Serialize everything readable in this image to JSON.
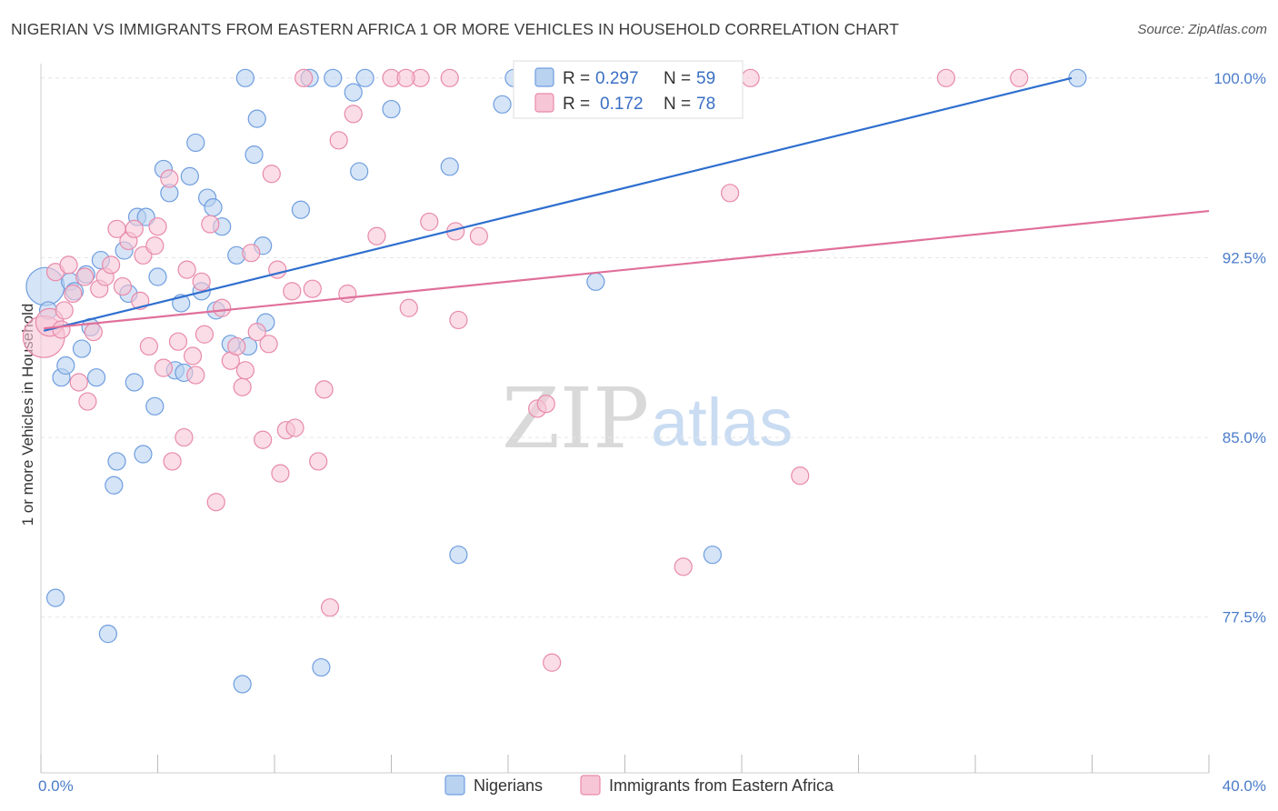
{
  "title": "NIGERIAN VS IMMIGRANTS FROM EASTERN AFRICA 1 OR MORE VEHICLES IN HOUSEHOLD CORRELATION CHART",
  "source": "Source: ZipAtlas.com",
  "watermark": {
    "zip": "ZIP",
    "atlas": "atlas"
  },
  "colors": {
    "nigerians_fill": "#b9d2f0",
    "nigerians_stroke": "#6f9ee0",
    "nigerians_line": "#2f6fcf",
    "eastafrica_fill": "#f7c6d6",
    "eastafrica_stroke": "#e88aab",
    "eastafrica_line": "#e0709a",
    "grid": "#e6e6e6",
    "axis_label": "#4a7cc9"
  },
  "legend": {
    "rows": [
      {
        "r_label": "R = ",
        "r_value": "0.297",
        "n_label": "N = ",
        "n_value": "59"
      },
      {
        "r_label": "R = ",
        "r_value": "0.172",
        "n_label": "N = ",
        "n_value": "78"
      }
    ]
  },
  "chart_data": {
    "type": "scatter",
    "title": "NIGERIAN VS IMMIGRANTS FROM EASTERN AFRICA 1 OR MORE VEHICLES IN HOUSEHOLD CORRELATION CHART",
    "xlabel": "",
    "ylabel": "1 or more Vehicles in Household",
    "xlim": [
      0,
      40
    ],
    "ylim": [
      71.0,
      100.6
    ],
    "x_tick_labels": [
      {
        "value": 0,
        "label": "0.0%"
      },
      {
        "value": 40,
        "label": "40.0%"
      }
    ],
    "y_tick_labels": [
      {
        "value": 100,
        "label": "100.0%"
      },
      {
        "value": 92.5,
        "label": "92.5%"
      },
      {
        "value": 85,
        "label": "85.0%"
      },
      {
        "value": 77.5,
        "label": "77.5%"
      }
    ],
    "grid": true,
    "legend_position": "top-center",
    "series": [
      {
        "name": "Nigerians",
        "trend": {
          "x": [
            0.1,
            35.3
          ],
          "y": [
            89.45,
            100.0
          ]
        },
        "points": [
          {
            "x": 0.15,
            "y": 91.3,
            "s": 2.2
          },
          {
            "x": 0.25,
            "y": 90.3
          },
          {
            "x": 0.5,
            "y": 78.3
          },
          {
            "x": 0.7,
            "y": 87.5
          },
          {
            "x": 0.85,
            "y": 88.0
          },
          {
            "x": 1.0,
            "y": 91.5
          },
          {
            "x": 1.15,
            "y": 91.1
          },
          {
            "x": 1.4,
            "y": 88.7
          },
          {
            "x": 1.55,
            "y": 91.8
          },
          {
            "x": 1.7,
            "y": 89.6
          },
          {
            "x": 1.9,
            "y": 87.5
          },
          {
            "x": 2.05,
            "y": 92.4
          },
          {
            "x": 2.5,
            "y": 83.0
          },
          {
            "x": 2.6,
            "y": 84.0
          },
          {
            "x": 2.85,
            "y": 92.8
          },
          {
            "x": 3.0,
            "y": 91.0
          },
          {
            "x": 3.2,
            "y": 87.3
          },
          {
            "x": 3.3,
            "y": 94.2
          },
          {
            "x": 3.5,
            "y": 84.3
          },
          {
            "x": 3.6,
            "y": 94.2
          },
          {
            "x": 3.9,
            "y": 86.3
          },
          {
            "x": 4.0,
            "y": 91.7
          },
          {
            "x": 4.2,
            "y": 96.2
          },
          {
            "x": 4.4,
            "y": 95.2
          },
          {
            "x": 4.6,
            "y": 87.8
          },
          {
            "x": 4.8,
            "y": 90.6
          },
          {
            "x": 4.9,
            "y": 87.7
          },
          {
            "x": 5.1,
            "y": 95.9
          },
          {
            "x": 5.3,
            "y": 97.3
          },
          {
            "x": 5.5,
            "y": 91.1
          },
          {
            "x": 5.7,
            "y": 95.0
          },
          {
            "x": 5.9,
            "y": 94.6
          },
          {
            "x": 6.0,
            "y": 90.3
          },
          {
            "x": 6.2,
            "y": 93.8
          },
          {
            "x": 6.5,
            "y": 88.9
          },
          {
            "x": 6.7,
            "y": 92.6
          },
          {
            "x": 6.9,
            "y": 74.7
          },
          {
            "x": 7.0,
            "y": 100.0
          },
          {
            "x": 7.1,
            "y": 88.8
          },
          {
            "x": 7.3,
            "y": 96.8
          },
          {
            "x": 7.4,
            "y": 98.3
          },
          {
            "x": 7.6,
            "y": 93.0
          },
          {
            "x": 7.7,
            "y": 89.8
          },
          {
            "x": 8.9,
            "y": 94.5
          },
          {
            "x": 9.2,
            "y": 100.0
          },
          {
            "x": 9.6,
            "y": 75.4
          },
          {
            "x": 10.0,
            "y": 100.0
          },
          {
            "x": 10.7,
            "y": 99.4
          },
          {
            "x": 10.9,
            "y": 96.1
          },
          {
            "x": 11.1,
            "y": 100.0
          },
          {
            "x": 12.0,
            "y": 98.7
          },
          {
            "x": 14.0,
            "y": 96.3
          },
          {
            "x": 14.3,
            "y": 80.1
          },
          {
            "x": 15.8,
            "y": 98.9
          },
          {
            "x": 16.2,
            "y": 100.0
          },
          {
            "x": 19.0,
            "y": 91.5
          },
          {
            "x": 23.0,
            "y": 80.1
          },
          {
            "x": 35.5,
            "y": 100.0
          },
          {
            "x": 2.3,
            "y": 76.8
          }
        ]
      },
      {
        "name": "Immigrants from Eastern Africa",
        "trend": {
          "x": [
            0.1,
            40
          ],
          "y": [
            89.55,
            94.45
          ]
        },
        "points": [
          {
            "x": 0.1,
            "y": 89.2,
            "s": 2.4
          },
          {
            "x": 0.3,
            "y": 89.8,
            "s": 1.6
          },
          {
            "x": 0.5,
            "y": 91.9
          },
          {
            "x": 0.7,
            "y": 89.5
          },
          {
            "x": 0.8,
            "y": 90.3
          },
          {
            "x": 0.95,
            "y": 92.2
          },
          {
            "x": 1.1,
            "y": 91.0
          },
          {
            "x": 1.3,
            "y": 87.3
          },
          {
            "x": 1.5,
            "y": 91.7
          },
          {
            "x": 1.6,
            "y": 86.5
          },
          {
            "x": 1.8,
            "y": 89.4
          },
          {
            "x": 2.0,
            "y": 91.2
          },
          {
            "x": 2.2,
            "y": 91.7
          },
          {
            "x": 2.4,
            "y": 92.2
          },
          {
            "x": 2.6,
            "y": 93.7
          },
          {
            "x": 2.8,
            "y": 91.3
          },
          {
            "x": 3.0,
            "y": 93.2
          },
          {
            "x": 3.2,
            "y": 93.7
          },
          {
            "x": 3.4,
            "y": 90.7
          },
          {
            "x": 3.5,
            "y": 92.6
          },
          {
            "x": 3.7,
            "y": 88.8
          },
          {
            "x": 3.9,
            "y": 93.0
          },
          {
            "x": 4.0,
            "y": 93.8
          },
          {
            "x": 4.2,
            "y": 87.9
          },
          {
            "x": 4.4,
            "y": 95.8
          },
          {
            "x": 4.5,
            "y": 84.0
          },
          {
            "x": 4.7,
            "y": 89.0
          },
          {
            "x": 4.9,
            "y": 85.0
          },
          {
            "x": 5.0,
            "y": 92.0
          },
          {
            "x": 5.2,
            "y": 88.4
          },
          {
            "x": 5.3,
            "y": 87.6
          },
          {
            "x": 5.5,
            "y": 91.5
          },
          {
            "x": 5.6,
            "y": 89.3
          },
          {
            "x": 5.8,
            "y": 93.9
          },
          {
            "x": 6.0,
            "y": 82.3
          },
          {
            "x": 6.2,
            "y": 90.4
          },
          {
            "x": 6.5,
            "y": 88.2
          },
          {
            "x": 6.7,
            "y": 88.8
          },
          {
            "x": 6.9,
            "y": 87.1
          },
          {
            "x": 7.0,
            "y": 87.8
          },
          {
            "x": 7.2,
            "y": 92.7
          },
          {
            "x": 7.4,
            "y": 89.4
          },
          {
            "x": 7.6,
            "y": 84.9
          },
          {
            "x": 7.8,
            "y": 88.9
          },
          {
            "x": 7.9,
            "y": 96.0
          },
          {
            "x": 8.1,
            "y": 92.0
          },
          {
            "x": 8.2,
            "y": 83.5
          },
          {
            "x": 8.4,
            "y": 85.3
          },
          {
            "x": 8.6,
            "y": 91.1
          },
          {
            "x": 8.7,
            "y": 85.4
          },
          {
            "x": 9.0,
            "y": 100.0
          },
          {
            "x": 9.3,
            "y": 91.2
          },
          {
            "x": 9.5,
            "y": 84.0
          },
          {
            "x": 9.7,
            "y": 87.0
          },
          {
            "x": 9.9,
            "y": 77.9
          },
          {
            "x": 10.2,
            "y": 97.4
          },
          {
            "x": 10.5,
            "y": 91.0
          },
          {
            "x": 10.7,
            "y": 98.5
          },
          {
            "x": 11.5,
            "y": 93.4
          },
          {
            "x": 12.0,
            "y": 100.0
          },
          {
            "x": 12.6,
            "y": 90.4
          },
          {
            "x": 13.0,
            "y": 100.0
          },
          {
            "x": 13.3,
            "y": 94.0
          },
          {
            "x": 14.0,
            "y": 100.0
          },
          {
            "x": 14.2,
            "y": 93.6
          },
          {
            "x": 14.3,
            "y": 89.9
          },
          {
            "x": 15.0,
            "y": 93.4
          },
          {
            "x": 17.0,
            "y": 86.2
          },
          {
            "x": 17.3,
            "y": 86.4
          },
          {
            "x": 17.5,
            "y": 75.6
          },
          {
            "x": 22.0,
            "y": 79.6
          },
          {
            "x": 23.4,
            "y": 100.0
          },
          {
            "x": 23.6,
            "y": 95.2
          },
          {
            "x": 24.3,
            "y": 100.0
          },
          {
            "x": 26.0,
            "y": 83.4
          },
          {
            "x": 31.0,
            "y": 100.0
          },
          {
            "x": 33.5,
            "y": 100.0
          },
          {
            "x": 12.5,
            "y": 100.0
          }
        ]
      }
    ]
  },
  "bottom_legend": [
    {
      "label": "Nigerians"
    },
    {
      "label": "Immigrants from Eastern Africa"
    }
  ]
}
